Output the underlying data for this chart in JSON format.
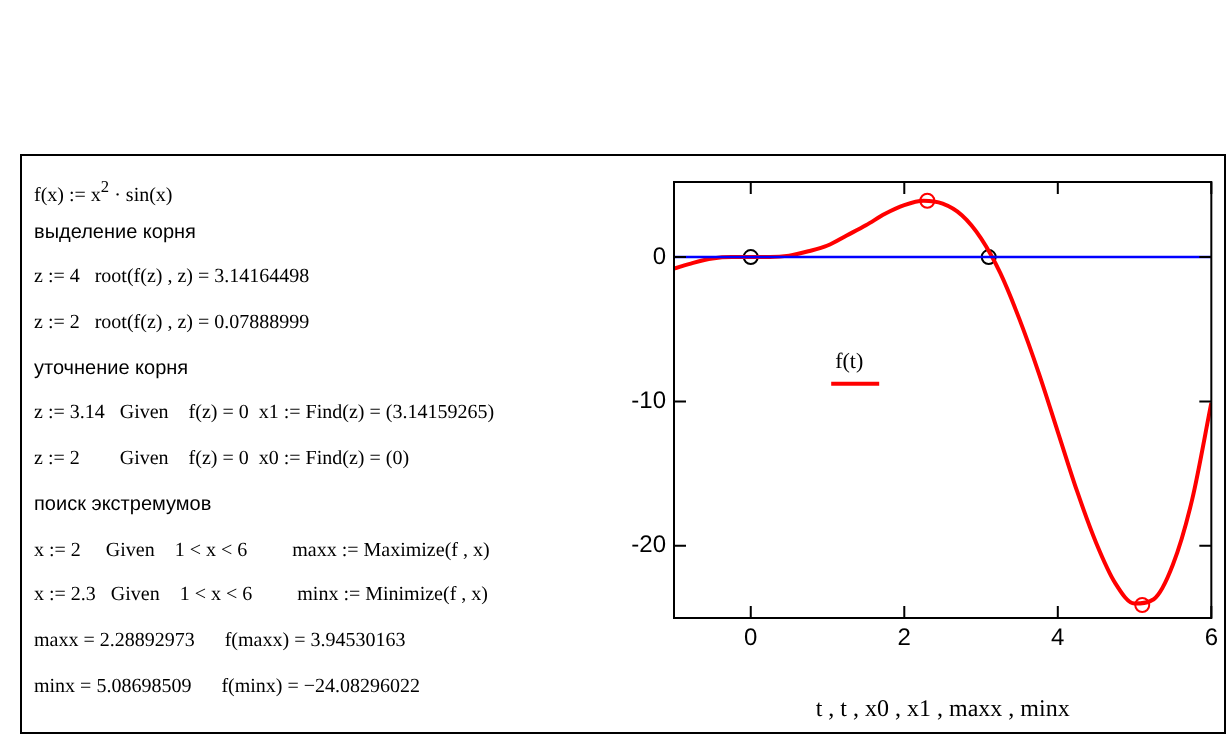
{
  "chart_data": {
    "type": "line",
    "xlabel": "t , t , x0 , x1 , maxx , minx",
    "xlim": [
      -1,
      6
    ],
    "xticks": [
      0,
      2,
      4,
      6
    ],
    "ylim": [
      -25,
      5.2
    ],
    "yticks": [
      -20,
      -10,
      0
    ],
    "grid": false,
    "legend": "center",
    "series": [
      {
        "name": "f(t)",
        "color": "#ff0000",
        "marker": "none",
        "x": [
          -1,
          -0.75,
          -0.5,
          -0.25,
          0,
          0.25,
          0.5,
          0.75,
          1,
          1.25,
          1.5,
          1.75,
          2,
          2.25,
          2.5,
          2.75,
          3,
          3.25,
          3.5,
          3.75,
          4,
          4.25,
          4.5,
          4.75,
          5,
          5.25,
          5.5,
          5.75,
          6
        ],
        "values": [
          -0.8,
          -0.4,
          -0.1,
          0,
          0,
          0,
          0.1,
          0.4,
          0.8,
          1.5,
          2.2,
          3,
          3.6,
          3.9,
          3.7,
          2.9,
          1.3,
          -1.1,
          -4.3,
          -8,
          -12.1,
          -16.2,
          -19.8,
          -22.6,
          -24,
          -23.7,
          -21.3,
          -16.8,
          -10.1
        ]
      },
      {
        "type": "scatter",
        "color": "#000000",
        "marker": "circle",
        "x": [
          0,
          3.1
        ],
        "values": [
          0,
          0
        ]
      },
      {
        "type": "scatter",
        "color": "#ff0000",
        "marker": "circle",
        "x": [
          2.3,
          5.1
        ],
        "values": [
          3.9,
          -24.1
        ]
      }
    ],
    "ref_lines": [
      {
        "axis": "y",
        "value": 0,
        "color": "#0000ff"
      }
    ],
    "annotations": [
      "f(x) := x$^{2}$ · sin(x)",
      "выделение корня",
      "z := 4   root(f(z) , z) = 3.14164498",
      "z := 2   root(f(z) , z) = 0.07888999",
      "уточнение корня",
      "z := 3.14   Given    f(z) = 0  x1 := Find(z) = (3.14159265)",
      "z := 2        Given    f(z) = 0  x0 := Find(z) = (0)",
      "поиск экстремумов",
      "x := 2     Given    1 < x < 6         maxx := Maximize(f , x)",
      "x := 2.3   Given    1 < x < 6         minx := Minimize(f , x)",
      "maxx = 2.28892973      f(maxx) = 3.94530163",
      "minx = 5.08698509      f(minx) = −24.08296022"
    ]
  }
}
